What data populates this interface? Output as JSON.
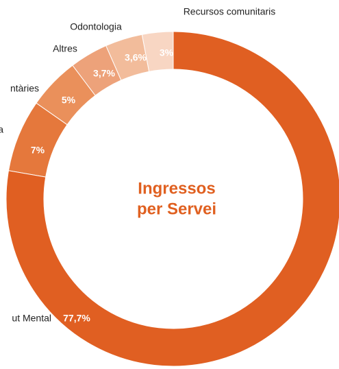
{
  "chart_data": {
    "type": "pie",
    "donut": true,
    "title_lines": [
      "Ingressos",
      "per Servei"
    ],
    "categories": [
      "ut Mental",
      "a",
      "ntàries",
      "Altres",
      "Odontologia",
      "Recursos comunitaris"
    ],
    "values": [
      77.7,
      7,
      5,
      3.7,
      3.6,
      3
    ],
    "value_labels": [
      "77,7%",
      "7%",
      "5%",
      "3,7%",
      "3,6%",
      "3%"
    ],
    "colors": [
      "#e05f22",
      "#e5783c",
      "#ea905b",
      "#eda27a",
      "#f2bc9b",
      "#f8d6c3"
    ]
  }
}
